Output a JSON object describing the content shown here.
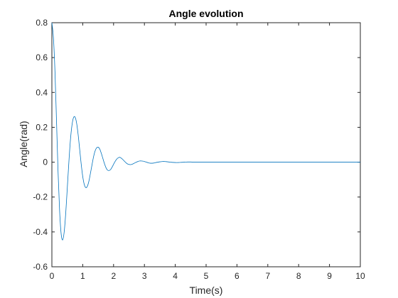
{
  "chart_data": {
    "type": "line",
    "title": "Angle evolution",
    "xlabel": "Time(s)",
    "ylabel": "Angle(rad)",
    "xlim": [
      0,
      10
    ],
    "ylim": [
      -0.6,
      0.8
    ],
    "xticks": [
      "0",
      "1",
      "2",
      "3",
      "4",
      "5",
      "6",
      "7",
      "8",
      "9",
      "10"
    ],
    "yticks": [
      "-0.6",
      "-0.4",
      "-0.2",
      "0",
      "0.2",
      "0.4",
      "0.6",
      "0.8"
    ],
    "grid": false,
    "series": [
      {
        "color": "#0072BD",
        "x": [
          0,
          0.05,
          0.1,
          0.15,
          0.2,
          0.25,
          0.3,
          0.35,
          0.4,
          0.45,
          0.5,
          0.55,
          0.6,
          0.65,
          0.7,
          0.75,
          0.8,
          0.85,
          0.9,
          0.95,
          1.0,
          1.05,
          1.1,
          1.15,
          1.2,
          1.25,
          1.3,
          1.35,
          1.4,
          1.45,
          1.5,
          1.55,
          1.6,
          1.65,
          1.7,
          1.75,
          1.8,
          1.85,
          1.9,
          1.95,
          2.0,
          2.05,
          2.1,
          2.15,
          2.2,
          2.25,
          2.3,
          2.35,
          2.4,
          2.45,
          2.5,
          2.55,
          2.6,
          2.65,
          2.7,
          2.75,
          2.8,
          2.85,
          2.9,
          2.95,
          3.0,
          3.1,
          3.2,
          3.3,
          3.4,
          3.5,
          3.6,
          3.7,
          3.8,
          3.9,
          4.0,
          4.1,
          4.2,
          4.3,
          4.4,
          4.5,
          4.6,
          4.7,
          4.8,
          4.9,
          5.0,
          5.5,
          6.0,
          6.5,
          7.0,
          7.5,
          8.0,
          8.5,
          9.0,
          9.5,
          10.0
        ],
        "y": [
          0.8,
          0.714,
          0.52,
          0.237,
          -0.054,
          -0.277,
          -0.41,
          -0.446,
          -0.398,
          -0.29,
          -0.147,
          -0.002,
          0.125,
          0.21,
          0.255,
          0.259,
          0.226,
          0.16,
          0.075,
          -0.01,
          -0.082,
          -0.128,
          -0.146,
          -0.138,
          -0.109,
          -0.064,
          -0.016,
          0.03,
          0.064,
          0.082,
          0.086,
          0.076,
          0.052,
          0.023,
          -0.006,
          -0.03,
          -0.045,
          -0.048,
          -0.043,
          -0.029,
          -0.012,
          0.004,
          0.017,
          0.025,
          0.028,
          0.023,
          0.015,
          0.006,
          -0.003,
          -0.01,
          -0.013,
          -0.014,
          -0.012,
          -0.008,
          -0.003,
          0.001,
          0.005,
          0.007,
          0.007,
          0.006,
          0.004,
          -0.002,
          -0.006,
          -0.005,
          -0.001,
          0.002,
          0.004,
          0.003,
          0.001,
          -0.001,
          -0.002,
          -0.002,
          -0.001,
          0.0,
          0.001,
          0.001,
          0.0,
          0.0,
          0.0,
          0.0,
          0.0,
          0.0,
          0.0,
          0.0,
          0.0,
          0.0,
          0.0,
          0.0,
          0.0,
          0.0,
          0.0
        ]
      }
    ]
  }
}
